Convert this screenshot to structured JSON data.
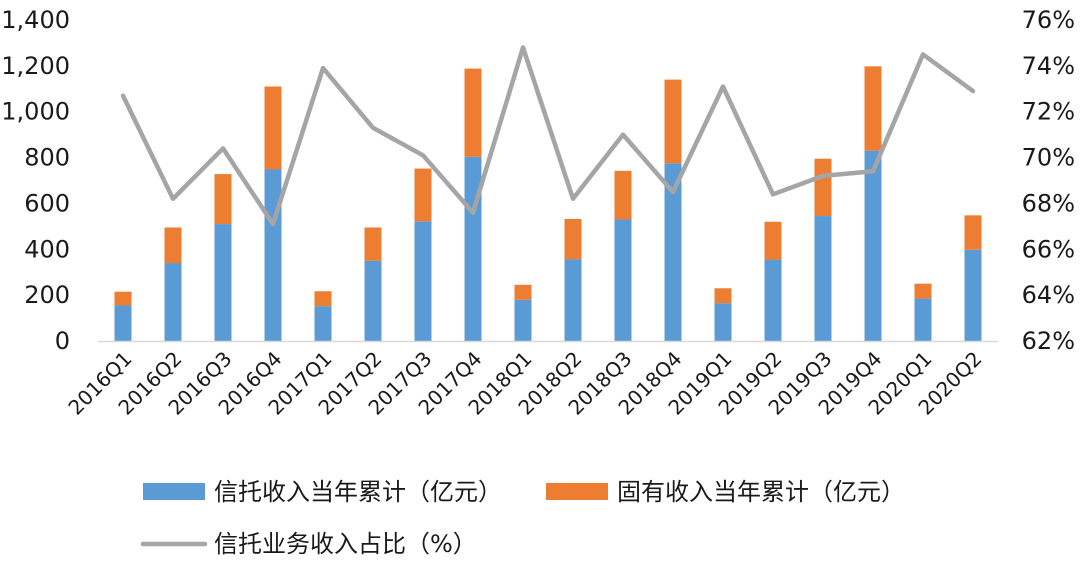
{
  "chart_data": {
    "type": "bar",
    "categories": [
      "2016Q1",
      "2016Q2",
      "2016Q3",
      "2016Q4",
      "2017Q1",
      "2017Q2",
      "2017Q3",
      "2017Q4",
      "2018Q1",
      "2018Q2",
      "2018Q3",
      "2018Q4",
      "2019Q1",
      "2019Q2",
      "2019Q3",
      "2019Q4",
      "2020Q1",
      "2020Q2"
    ],
    "series": [
      {
        "name": "信托收入当年累计（亿元）",
        "kind": "stacked-bar",
        "axis": "left",
        "color": "#5b9bd5",
        "values": [
          155,
          340,
          510,
          748,
          152,
          350,
          522,
          803,
          180,
          357,
          530,
          775,
          165,
          355,
          545,
          830,
          185,
          398
        ]
      },
      {
        "name": "固有收入当年累计（亿元）",
        "kind": "stacked-bar",
        "axis": "left",
        "color": "#ed7d31",
        "values": [
          60,
          155,
          218,
          362,
          65,
          145,
          230,
          385,
          65,
          175,
          212,
          365,
          65,
          165,
          250,
          368,
          65,
          150
        ]
      },
      {
        "name": "信托业务收入占比（%）",
        "kind": "line",
        "axis": "right",
        "color": "#a5a5a5",
        "values": [
          72.7,
          68.2,
          70.4,
          67.1,
          73.9,
          71.3,
          70.1,
          67.6,
          74.8,
          68.2,
          71.0,
          68.5,
          73.1,
          68.4,
          69.2,
          69.4,
          74.5,
          72.9
        ]
      }
    ],
    "left_axis": {
      "ylim": [
        0,
        1400
      ],
      "ticks": [
        "0",
        "200",
        "400",
        "600",
        "800",
        "1,000",
        "1,200",
        "1,400"
      ]
    },
    "right_axis": {
      "ylim": [
        62,
        76
      ],
      "ticks": [
        "62%",
        "64%",
        "66%",
        "68%",
        "70%",
        "72%",
        "74%",
        "76%"
      ]
    },
    "grid": false,
    "legend_placement": "bottom"
  }
}
